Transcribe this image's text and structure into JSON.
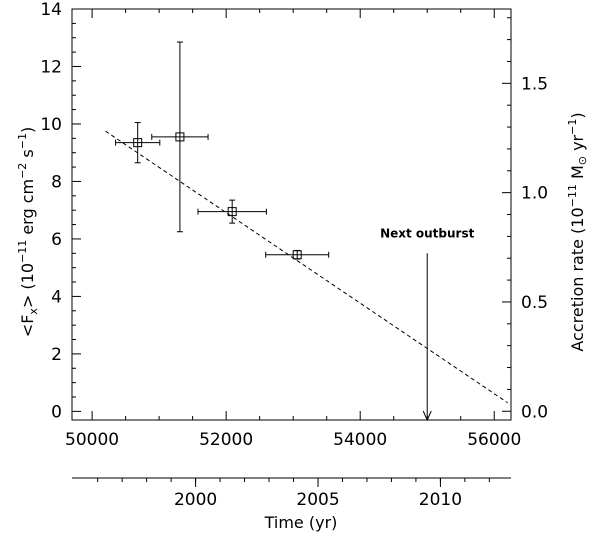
{
  "chart_data": {
    "type": "scatter",
    "title": "",
    "xlabel": "",
    "ylabel": "<F_x> (10^-11 erg cm^-2 s^-1)",
    "ylabel_parts": {
      "pre": "<F",
      "sub": "x",
      "post": "> (10",
      "exp1": "−11",
      "mid": " erg cm",
      "exp2": "−2",
      "mid2": " s",
      "exp3": "−1",
      "end": ")"
    },
    "y2label_parts": {
      "pre": "Accretion rate (10",
      "exp1": "−11",
      "mid": " M",
      "sun": "⊙",
      "mid2": " yr",
      "exp2": "−1",
      "end": ")"
    },
    "time_axis_label": "Time (yr)",
    "xlim": [
      49700,
      56250
    ],
    "ylim": [
      -0.3,
      14
    ],
    "y2lim": [
      -0.04,
      1.84
    ],
    "x_ticks": [
      50000,
      52000,
      54000,
      56000
    ],
    "y_ticks": [
      0,
      2,
      4,
      6,
      8,
      10,
      12,
      14
    ],
    "y2_ticks": [
      0.0,
      0.5,
      1.0,
      1.5
    ],
    "time_ticks": [
      {
        "label": "2000",
        "mjd": 51544
      },
      {
        "label": "2005",
        "mjd": 53371
      },
      {
        "label": "2010",
        "mjd": 55197
      }
    ],
    "time_axis_range": [
      49700,
      56250
    ],
    "series": [
      {
        "points": [
          {
            "x": 50680,
            "y": 9.35,
            "xerr": 330,
            "yerr_low": 0.7,
            "yerr_high": 0.7
          },
          {
            "x": 51310,
            "y": 9.55,
            "xerr": 420,
            "yerr_low": 3.3,
            "yerr_high": 3.3
          },
          {
            "x": 52090,
            "y": 6.95,
            "xerr": 510,
            "yerr_low": 0.4,
            "yerr_high": 0.4
          },
          {
            "x": 53060,
            "y": 5.45,
            "xerr": 470,
            "yerr_low": 0.15,
            "yerr_high": 0.15
          }
        ]
      }
    ],
    "fit_line": {
      "x": [
        50200,
        56200
      ],
      "y": [
        9.75,
        0.3
      ]
    },
    "annotations": [
      {
        "text": "Next outburst",
        "x": 55000,
        "arrow_from_y": 5.5,
        "arrow_to_y": -0.3
      }
    ]
  }
}
